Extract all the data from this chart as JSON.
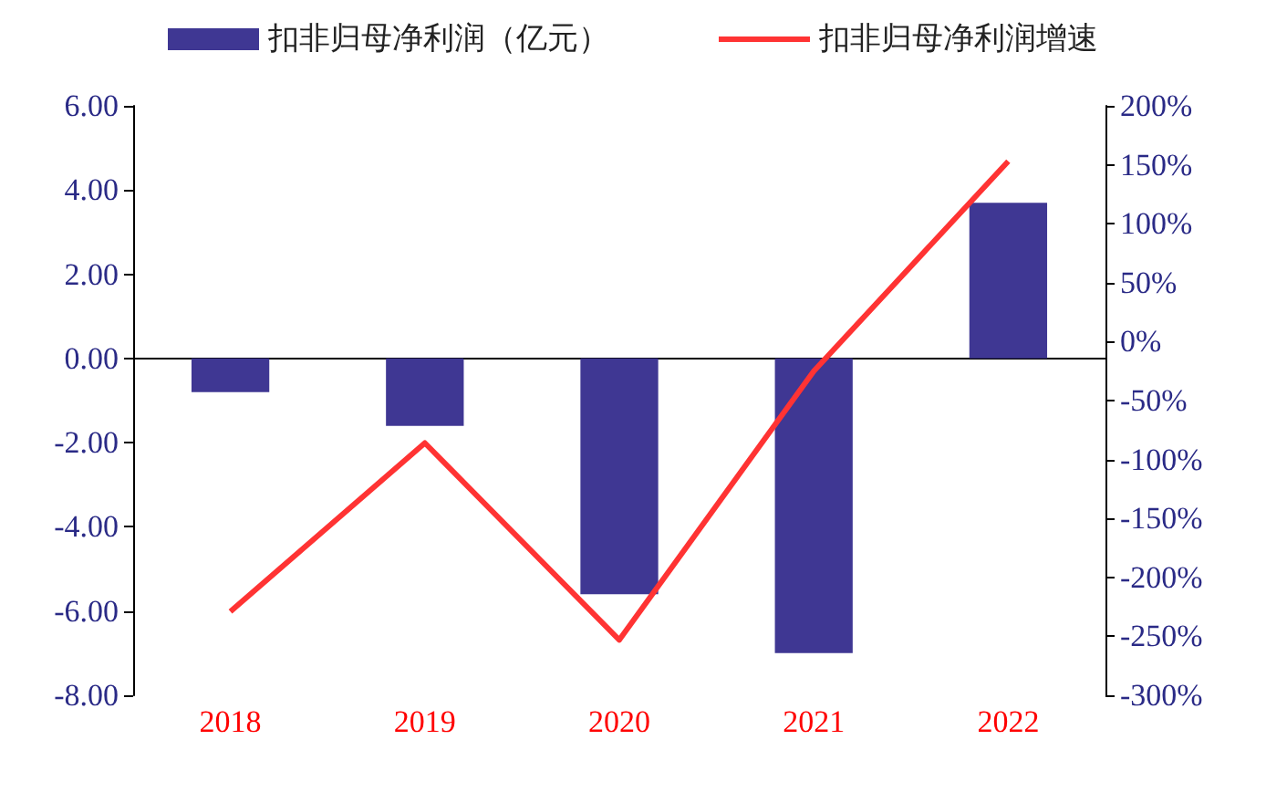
{
  "chart_data": {
    "type": "bar",
    "categories": [
      "2018",
      "2019",
      "2020",
      "2021",
      "2022"
    ],
    "series": [
      {
        "name": "扣非归母净利润（亿元）",
        "color": "#3f3793",
        "values": [
          -0.8,
          -1.6,
          -5.6,
          -7.0,
          3.7
        ]
      },
      {
        "name": "扣非归母净利润增速",
        "type": "line",
        "axis": "y2",
        "color": "#ff3333",
        "values": [
          -229,
          -86,
          -253,
          -25,
          153
        ]
      }
    ],
    "ylim": [
      -8,
      6
    ],
    "yticks": [
      {
        "value": -8,
        "label": "-8.00"
      },
      {
        "value": -6,
        "label": "-6.00"
      },
      {
        "value": -4,
        "label": "-4.00"
      },
      {
        "value": -2,
        "label": "-2.00"
      },
      {
        "value": 0,
        "label": "0.00"
      },
      {
        "value": 2,
        "label": "2.00"
      },
      {
        "value": 4,
        "label": "4.00"
      },
      {
        "value": 6,
        "label": "6.00"
      }
    ],
    "y2lim": [
      -300,
      200
    ],
    "y2ticks": [
      {
        "value": -300,
        "label": "-300%"
      },
      {
        "value": -250,
        "label": "-250%"
      },
      {
        "value": -200,
        "label": "-200%"
      },
      {
        "value": -150,
        "label": "-150%"
      },
      {
        "value": -100,
        "label": "-100%"
      },
      {
        "value": -50,
        "label": "-50%"
      },
      {
        "value": 0,
        "label": "0%"
      },
      {
        "value": 50,
        "label": "50%"
      },
      {
        "value": 100,
        "label": "100%"
      },
      {
        "value": 150,
        "label": "150%"
      },
      {
        "value": 200,
        "label": "200%"
      }
    ],
    "legend": "top",
    "marker": "none"
  }
}
